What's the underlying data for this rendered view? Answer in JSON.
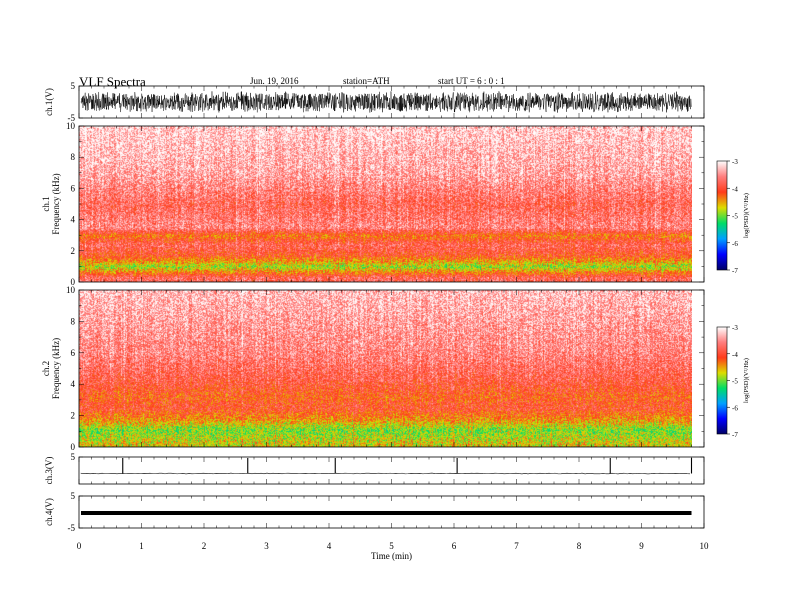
{
  "header": {
    "title": "VLF  Spectra",
    "date": "Jun. 19, 2016",
    "station": "station=ATH",
    "start": "start  UT =   6  : 0  : 1"
  },
  "chart_data": {
    "type": "heatmap",
    "xlabel": "Time  (min)",
    "xlim": [
      0,
      10
    ],
    "x_ticks": [
      0,
      1,
      2,
      3,
      4,
      5,
      6,
      7,
      8,
      9,
      10
    ],
    "data_end_min": 9.8,
    "panels": [
      {
        "id": "ch1_wave",
        "kind": "waveform",
        "ylabel": "ch.1(V)",
        "ylim": [
          -5,
          5
        ],
        "y_ticks": [
          "5",
          "-5"
        ],
        "trace_amplitude": 3.5
      },
      {
        "id": "ch1_spec",
        "kind": "spectrogram",
        "ylabel": "ch.1\nFrequency  (kHz)",
        "ylim": [
          0,
          10
        ],
        "y_ticks": [
          0,
          2,
          4,
          6,
          8,
          10
        ],
        "psd_by_freq_khz": [
          [
            0.3,
            -3.8
          ],
          [
            1.0,
            -4.9
          ],
          [
            1.7,
            -4.1
          ],
          [
            2.4,
            -3.8
          ],
          [
            3.0,
            -4.3
          ],
          [
            3.5,
            -3.6
          ],
          [
            5,
            -3.8
          ],
          [
            7,
            -3.4
          ],
          [
            10,
            -3.2
          ]
        ],
        "colorbar": {
          "label": "log(PSD)(V²/Hz)",
          "range": [
            -7,
            -3
          ],
          "ticks": [
            "-3",
            "-4",
            "-5",
            "-6",
            "-7"
          ]
        }
      },
      {
        "id": "ch2_spec",
        "kind": "spectrogram",
        "ylabel": "ch.2\nFrequency  (kHz)",
        "ylim": [
          0,
          10
        ],
        "y_ticks": [
          0,
          2,
          4,
          6,
          8,
          10
        ],
        "psd_by_freq_khz": [
          [
            0.3,
            -4.7
          ],
          [
            1.1,
            -5.0
          ],
          [
            1.7,
            -4.5
          ],
          [
            2.5,
            -4.0
          ],
          [
            3.2,
            -4.2
          ],
          [
            4.2,
            -3.9
          ],
          [
            6,
            -3.6
          ],
          [
            10,
            -3.3
          ]
        ],
        "colorbar": {
          "label": "log(PSD)(V²/Hz)",
          "range": [
            -7,
            -3
          ],
          "ticks": [
            "-3",
            "-4",
            "-5",
            "-6",
            "-7"
          ]
        }
      },
      {
        "id": "ch3_wave",
        "kind": "waveform",
        "ylabel": "ch.3(V)",
        "ylim": [
          -5,
          5
        ],
        "y_ticks": [
          "5"
        ],
        "baseline_value": 0,
        "spikes_min": [
          0.7,
          2.7,
          4.1,
          6.05,
          8.5,
          9.8
        ]
      },
      {
        "id": "ch4_wave",
        "kind": "waveform",
        "ylabel": "ch.4(V)",
        "ylim": [
          -5,
          5
        ],
        "y_ticks": [
          "5",
          "-5"
        ],
        "level_value": 0
      }
    ]
  },
  "colors": {
    "background": "#ffffff",
    "axis": "#000000",
    "colormap": [
      "#000066",
      "#0000ff",
      "#00a0ff",
      "#00dd66",
      "#dddd00",
      "#ff3b1a",
      "#ff7e7e",
      "#ffffff"
    ]
  }
}
